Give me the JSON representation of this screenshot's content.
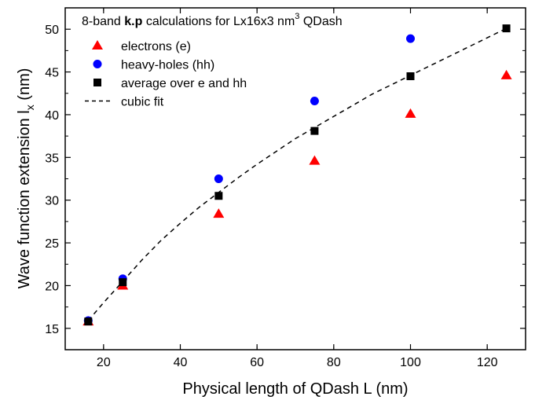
{
  "chart_data": {
    "type": "scatter",
    "title": "",
    "legend_title": {
      "prefix": "8-band ",
      "bold": "k.p",
      "middle": " calculations for Lx16x3 nm",
      "superscript": "3",
      "suffix": " QDash"
    },
    "xlabel": "Physical length of QDash L (nm)",
    "ylabel": {
      "main": "Wave function extension l",
      "subscript": "x",
      "unit": " (nm)"
    },
    "xlim": [
      10,
      130
    ],
    "ylim": [
      12.5,
      52.5
    ],
    "xticks": [
      20,
      40,
      60,
      80,
      100,
      120
    ],
    "yticks": [
      15,
      20,
      25,
      30,
      35,
      40,
      45,
      50
    ],
    "grid": false,
    "legend_position": "top-left",
    "series": [
      {
        "name": "electrons (e)",
        "marker": "triangle",
        "color": "#ff0000",
        "x": [
          16,
          25,
          50,
          75,
          100,
          125
        ],
        "y": [
          15.8,
          20.0,
          28.4,
          34.6,
          40.1,
          44.6
        ]
      },
      {
        "name": "heavy-holes (hh)",
        "marker": "circle",
        "color": "#0000ff",
        "x": [
          16,
          25,
          50,
          75,
          100
        ],
        "y": [
          15.9,
          20.8,
          32.5,
          41.6,
          48.9
        ]
      },
      {
        "name": "average over e and hh",
        "marker": "square",
        "color": "#000000",
        "x": [
          16,
          25,
          50,
          75,
          100,
          125
        ],
        "y": [
          15.8,
          20.4,
          30.5,
          38.1,
          44.5,
          50.1
        ]
      },
      {
        "name": "cubic fit",
        "marker": "dashed-line",
        "color": "#000000",
        "x": [
          16,
          20,
          25,
          30,
          35,
          40,
          45,
          50,
          55,
          60,
          65,
          70,
          75,
          80,
          85,
          90,
          95,
          100,
          105,
          110,
          115,
          120,
          125
        ],
        "y": [
          15.9,
          18.0,
          20.5,
          23.0,
          25.3,
          27.3,
          29.2,
          30.9,
          32.6,
          34.2,
          35.7,
          37.2,
          38.5,
          39.8,
          41.1,
          42.4,
          43.5,
          44.6,
          45.7,
          46.8,
          47.9,
          49.0,
          50.1
        ]
      }
    ]
  }
}
